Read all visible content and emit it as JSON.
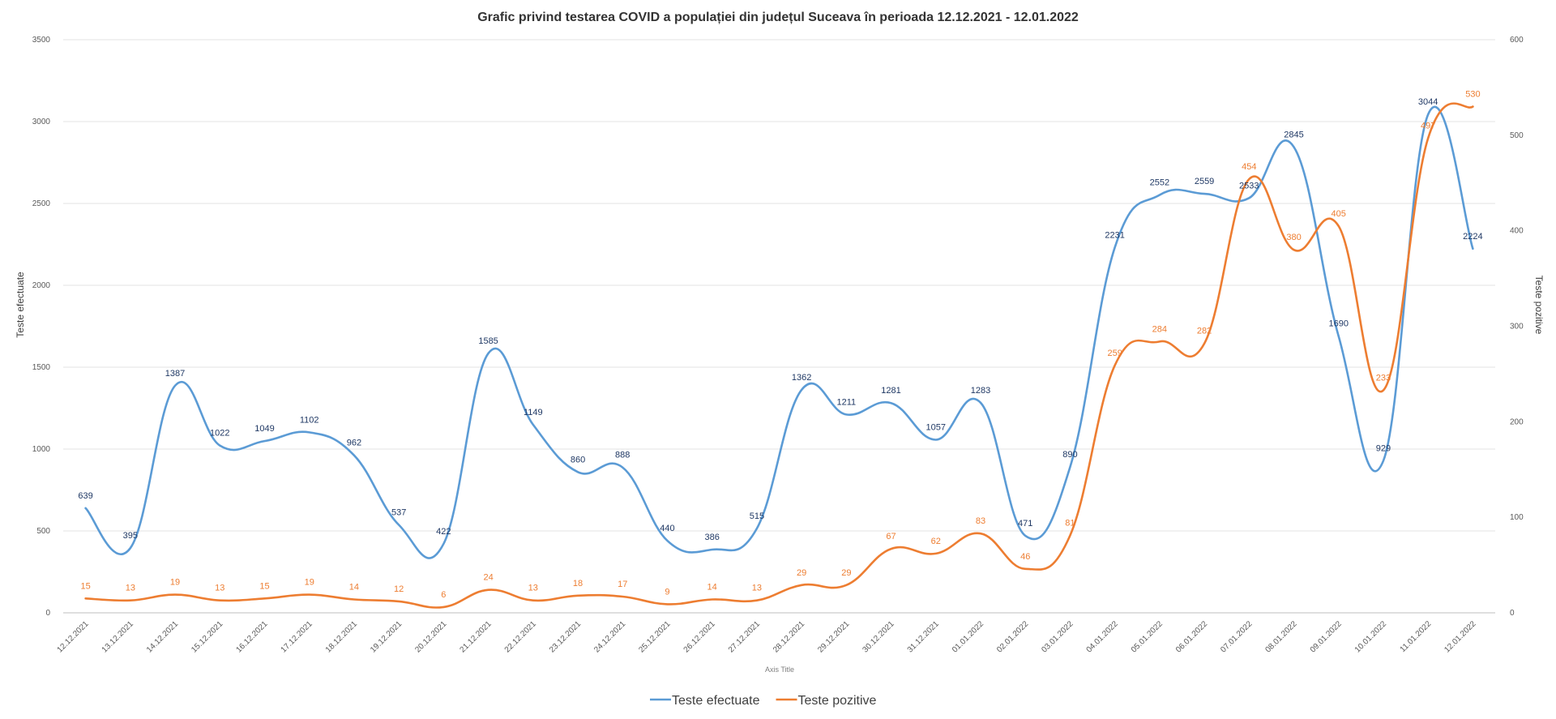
{
  "chart_data": {
    "type": "line",
    "title": "Grafic privind testarea COVID a populației din județul Suceava în perioada 12.12.2021 - 12.01.2022",
    "xlabel": "Axis Title",
    "ylabel": "Teste efectuate",
    "y2label": "Teste pozitive",
    "ylim": [
      0,
      3500
    ],
    "y2lim": [
      0,
      600
    ],
    "yticks": [
      0,
      500,
      1000,
      1500,
      2000,
      2500,
      3000,
      3500
    ],
    "y2ticks": [
      0,
      100,
      200,
      300,
      400,
      500,
      600
    ],
    "grid": true,
    "smooth": true,
    "legend_position": "bottom",
    "categories": [
      "12.12.2021",
      "13.12.2021",
      "14.12.2021",
      "15.12.2021",
      "16.12.2021",
      "17.12.2021",
      "18.12.2021",
      "19.12.2021",
      "20.12.2021",
      "21.12.2021",
      "22.12.2021",
      "23.12.2021",
      "24.12.2021",
      "25.12.2021",
      "26.12.2021",
      "27.12.2021",
      "28.12.2021",
      "29.12.2021",
      "30.12.2021",
      "31.12.2021",
      "01.01.2022",
      "02.01.2022",
      "03.01.2022",
      "04.01.2022",
      "05.01.2022",
      "06.01.2022",
      "07.01.2022",
      "08.01.2022",
      "09.01.2022",
      "10.01.2022",
      "11.01.2022",
      "12.01.2022"
    ],
    "series": [
      {
        "name": "Teste efectuate",
        "axis": "left",
        "color": "#5B9BD5",
        "label_color": "#1F3864",
        "values": [
          639,
          395,
          1387,
          1022,
          1049,
          1102,
          962,
          537,
          422,
          1585,
          1149,
          860,
          888,
          440,
          386,
          515,
          1362,
          1211,
          1281,
          1057,
          1283,
          471,
          890,
          2231,
          2552,
          2559,
          2533,
          2845,
          1690,
          929,
          3044,
          2224
        ]
      },
      {
        "name": "Teste pozitive",
        "axis": "right",
        "color": "#ED7D31",
        "label_color": "#ED7D31",
        "values": [
          15,
          13,
          19,
          13,
          15,
          19,
          14,
          12,
          6,
          24,
          13,
          18,
          17,
          9,
          14,
          13,
          29,
          29,
          67,
          62,
          83,
          46,
          81,
          259,
          284,
          282,
          454,
          380,
          405,
          233,
          497,
          530
        ]
      }
    ]
  }
}
